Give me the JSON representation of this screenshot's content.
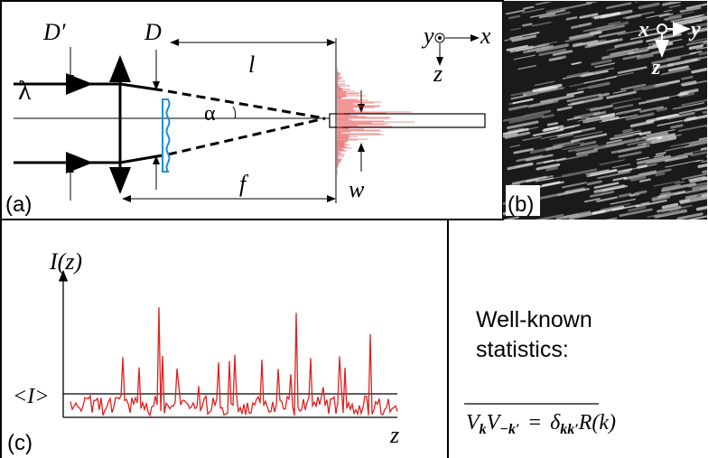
{
  "panel_a": {
    "label": "(a)",
    "D_prime": "D′",
    "D": "D",
    "l": "l",
    "lambda": "λ",
    "alpha": "α",
    "f": "f",
    "w": "w",
    "axes": {
      "y": "y",
      "x": "x",
      "z": "z"
    }
  },
  "panel_b": {
    "label": "(b)",
    "axes": {
      "x": "x",
      "y": "y",
      "z": "z"
    }
  },
  "panel_c": {
    "label": "(c)",
    "y_axis": "I(z)",
    "x_axis": "z",
    "mean_label": "<I>"
  },
  "text": {
    "lines": [
      "Well-known",
      "statistics:"
    ],
    "formula": {
      "v1": "V",
      "k1": "k",
      "v2": "V",
      "k2": "−k′",
      "eq": "=",
      "delta": "δ",
      "kk": "kk′",
      "r": "R(k)"
    }
  }
}
